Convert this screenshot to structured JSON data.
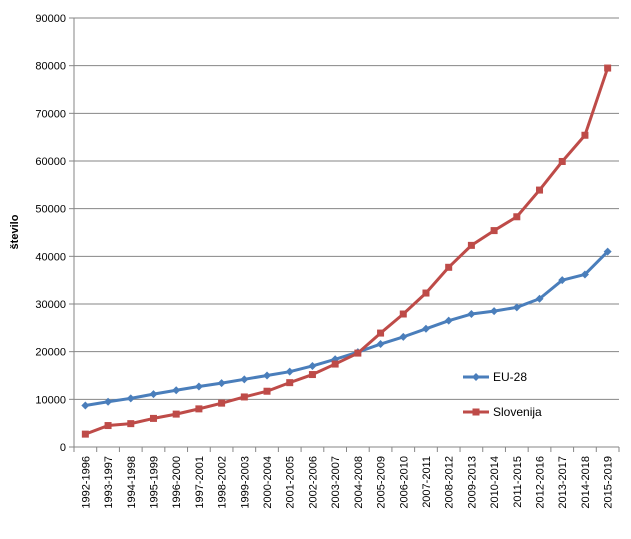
{
  "chart_data": {
    "type": "line",
    "title": "",
    "xlabel": "",
    "ylabel": "število",
    "ylim": [
      0,
      90000
    ],
    "yticks": [
      0,
      10000,
      20000,
      30000,
      40000,
      50000,
      60000,
      70000,
      80000,
      90000
    ],
    "grid": "horizontal",
    "legend_position": "right",
    "categories": [
      "1992-1996",
      "1993-1997",
      "1994-1998",
      "1995-1999",
      "1996-2000",
      "1997-2001",
      "1998-2002",
      "1999-2003",
      "2000-2004",
      "2001-2005",
      "2002-2006",
      "2003-2007",
      "2004-2008",
      "2005-2009",
      "2006-2010",
      "2007-2011",
      "2008-2012",
      "2009-2013",
      "2010-2014",
      "2011-2015",
      "2012-2016",
      "2013-2017",
      "2014-2018",
      "2015-2019"
    ],
    "series": [
      {
        "name": "EU-28",
        "color": "#4a7ebb",
        "marker": "diamond",
        "values": [
          8700,
          9500,
          10200,
          11100,
          11900,
          12700,
          13400,
          14200,
          15000,
          15800,
          17000,
          18400,
          19900,
          21600,
          23100,
          24800,
          26500,
          27900,
          28500,
          29300,
          31100,
          35000,
          36200,
          41000
        ]
      },
      {
        "name": "Slovenija",
        "color": "#be4b48",
        "marker": "square",
        "values": [
          2700,
          4500,
          4900,
          6000,
          6900,
          8000,
          9200,
          10500,
          11700,
          13500,
          15200,
          17400,
          19700,
          23900,
          27900,
          32300,
          37700,
          42300,
          45400,
          48300,
          53900,
          59900,
          65400,
          79500
        ]
      }
    ]
  }
}
